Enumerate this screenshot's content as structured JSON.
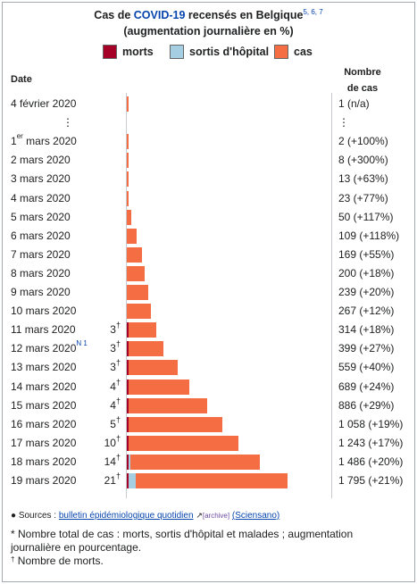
{
  "title": {
    "part1": "Cas de ",
    "link": "COVID-19",
    "part2": " recensés en Belgique",
    "refs": "5, 6, 7",
    "line2": "(augmentation journalière en %)"
  },
  "legend": [
    {
      "label": "morts",
      "color": "#a50026"
    },
    {
      "label": "sortis d'hôpital",
      "color": "#a6cee3"
    },
    {
      "label": "cas",
      "color": "#f46d43"
    }
  ],
  "headers": {
    "date": "Date",
    "cases_line1": "Nombre",
    "cases_line2": "de cas"
  },
  "chart_data": {
    "type": "bar",
    "orientation": "horizontal-stacked",
    "series_order": [
      "morts",
      "sortis d'hôpital",
      "cas"
    ],
    "rows": [
      {
        "date": "4 février 2020",
        "deaths": null,
        "recovered": 0,
        "cases": 1,
        "label": "1 (n/a)"
      },
      {
        "ellipsis": true,
        "date": "⋮",
        "label": "⋮"
      },
      {
        "date": "1",
        "date_sup": "er",
        "date_rest": " mars 2020",
        "deaths": null,
        "recovered": 0,
        "cases": 2,
        "label": "2 (+100%)"
      },
      {
        "date": "2 mars 2020",
        "deaths": null,
        "recovered": 0,
        "cases": 8,
        "label": "8 (+300%)"
      },
      {
        "date": "3 mars 2020",
        "deaths": null,
        "recovered": 0,
        "cases": 13,
        "label": "13 (+63%)"
      },
      {
        "date": "4 mars 2020",
        "deaths": null,
        "recovered": 0,
        "cases": 23,
        "label": "23 (+77%)"
      },
      {
        "date": "5 mars 2020",
        "deaths": null,
        "recovered": 0,
        "cases": 50,
        "label": "50 (+117%)"
      },
      {
        "date": "6 mars 2020",
        "deaths": null,
        "recovered": 0,
        "cases": 109,
        "label": "109 (+118%)"
      },
      {
        "date": "7 mars 2020",
        "deaths": null,
        "recovered": 0,
        "cases": 169,
        "label": "169 (+55%)"
      },
      {
        "date": "8 mars 2020",
        "deaths": null,
        "recovered": 0,
        "cases": 200,
        "label": "200 (+18%)"
      },
      {
        "date": "9 mars 2020",
        "deaths": null,
        "recovered": 0,
        "cases": 239,
        "label": "239 (+20%)"
      },
      {
        "date": "10 mars 2020",
        "deaths": null,
        "recovered": 0,
        "cases": 267,
        "label": "267 (+12%)"
      },
      {
        "date": "11 mars 2020",
        "deaths": 3,
        "recovered": 0,
        "cases": 314,
        "label": "314 (+18%)"
      },
      {
        "date": "12 mars 2020",
        "note": "N 1",
        "deaths": 3,
        "recovered": 0,
        "cases": 399,
        "label": "399 (+27%)"
      },
      {
        "date": "13 mars 2020",
        "deaths": 3,
        "recovered": 0,
        "cases": 559,
        "label": "559 (+40%)"
      },
      {
        "date": "14 mars 2020",
        "deaths": 4,
        "recovered": 0,
        "cases": 689,
        "label": "689 (+24%)"
      },
      {
        "date": "15 mars 2020",
        "deaths": 4,
        "recovered": 0,
        "cases": 886,
        "label": "886 (+29%)"
      },
      {
        "date": "16 mars 2020",
        "deaths": 5,
        "recovered": 0,
        "cases": 1058,
        "label": "1 058 (+19%)"
      },
      {
        "date": "17 mars 2020",
        "deaths": 10,
        "recovered": 0,
        "cases": 1243,
        "label": "1 243 (+17%)"
      },
      {
        "date": "18 mars 2020",
        "deaths": 14,
        "recovered": 20,
        "cases": 1486,
        "label": "1 486 (+20%)"
      },
      {
        "date": "19 mars 2020",
        "deaths": 21,
        "recovered": 80,
        "cases": 1795,
        "label": "1 795 (+21%)"
      }
    ],
    "death_marker": "†",
    "xlim": [
      0,
      1795
    ]
  },
  "footer": {
    "sources_label": "Sources : ",
    "sources_link": "bulletin épidémiologique quotidien",
    "archive": "[archive]",
    "sources_org": "(Sciensano)",
    "note_star": "* Nombre total de cas : morts, sortis d'hôpital et malades ; augmentation journalière en pourcentage.",
    "note_dagger_mark": "†",
    "note_dagger": " Nombre de morts."
  }
}
